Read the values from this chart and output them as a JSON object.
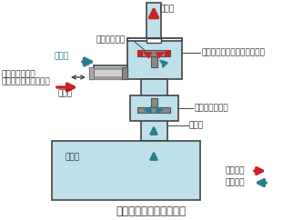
{
  "bg_color": "#ffffff",
  "water_color": "#bde0ea",
  "pump_outline": "#444444",
  "valve_gray": "#888888",
  "valve_red": "#cc2222",
  "arrow_red": "#cc2222",
  "arrow_teal": "#2a7d8c",
  "title": "プランジャーポンプ構造",
  "label_plunger": "プランジャー",
  "label_check_top": "チェックバルブ（逆流防止）",
  "label_check_mid": "チェックバルブ",
  "label_intake_port": "吸込口",
  "label_outlet_port": "吐出口",
  "label_crank_line1": "クランクにより",
  "label_crank_line2": "シャフトが往復動する",
  "label_suction": "吸込み",
  "label_discharge": "吐出し",
  "label_tank": "タンク",
  "label_discharge_legend": "吐出し：",
  "label_suction_legend": "吸込み：",
  "title_fontsize": 8.5,
  "label_fontsize": 6.5
}
